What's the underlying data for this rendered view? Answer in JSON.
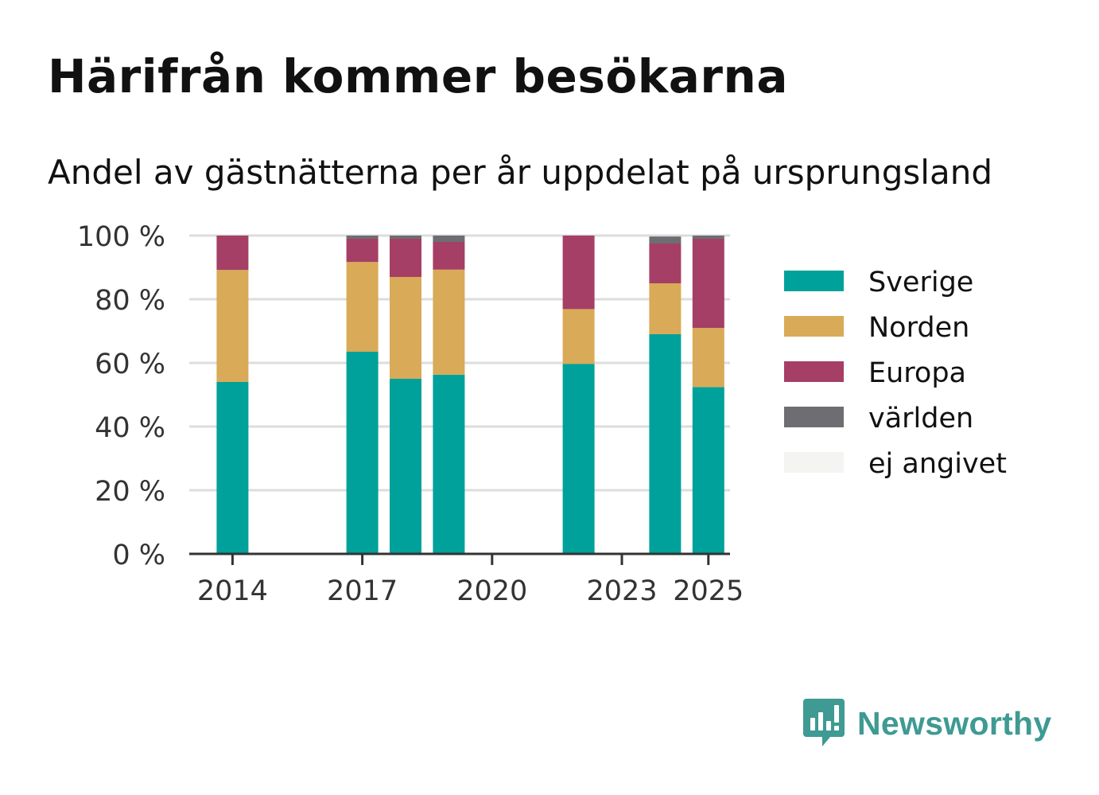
{
  "title": "Härifrån kommer besökarna",
  "subtitle": "Andel av gästnätterna per år uppdelat på ursprungsland",
  "brand": {
    "name": "Newsworthy",
    "icon": "newsworthy-logo-icon"
  },
  "colors": {
    "Sverige": "#00a19a",
    "Norden": "#d9aa57",
    "Europa": "#a53f65",
    "världen": "#6e6e72",
    "ej angivet": "#f4f4f2"
  },
  "chart_data": {
    "type": "bar",
    "stacked": true,
    "title": "Härifrån kommer besökarna",
    "subtitle": "Andel av gästnätterna per år uppdelat på ursprungsland",
    "xlabel": "",
    "ylabel": "",
    "categories": [
      2014,
      2017,
      2018,
      2019,
      2022,
      2024,
      2025
    ],
    "x_ticks": [
      2014,
      2017,
      2020,
      2023,
      2025
    ],
    "x_tick_labels": [
      "2014",
      "2017",
      "2020",
      "2023",
      "2025"
    ],
    "xlim": [
      2013,
      2025.5
    ],
    "ylim": [
      0,
      100
    ],
    "y_ticks": [
      0,
      20,
      40,
      60,
      80,
      100
    ],
    "y_tick_labels": [
      "0 %",
      "20 %",
      "40 %",
      "60 %",
      "80 %",
      "100 %"
    ],
    "grid": true,
    "legend_position": "right",
    "series": [
      {
        "name": "Sverige",
        "values": [
          54,
          63.5,
          55,
          56.3,
          59.7,
          69,
          52.4
        ]
      },
      {
        "name": "Norden",
        "values": [
          35.2,
          28.2,
          32,
          33,
          17.2,
          16,
          18.6
        ]
      },
      {
        "name": "Europa",
        "values": [
          10.8,
          7.3,
          12,
          8.7,
          23.1,
          12.5,
          28
        ]
      },
      {
        "name": "världen",
        "values": [
          0,
          1,
          1,
          2,
          0,
          2.2,
          1
        ]
      },
      {
        "name": "ej angivet",
        "values": [
          0,
          0,
          0,
          0,
          0,
          0,
          0
        ]
      }
    ]
  }
}
